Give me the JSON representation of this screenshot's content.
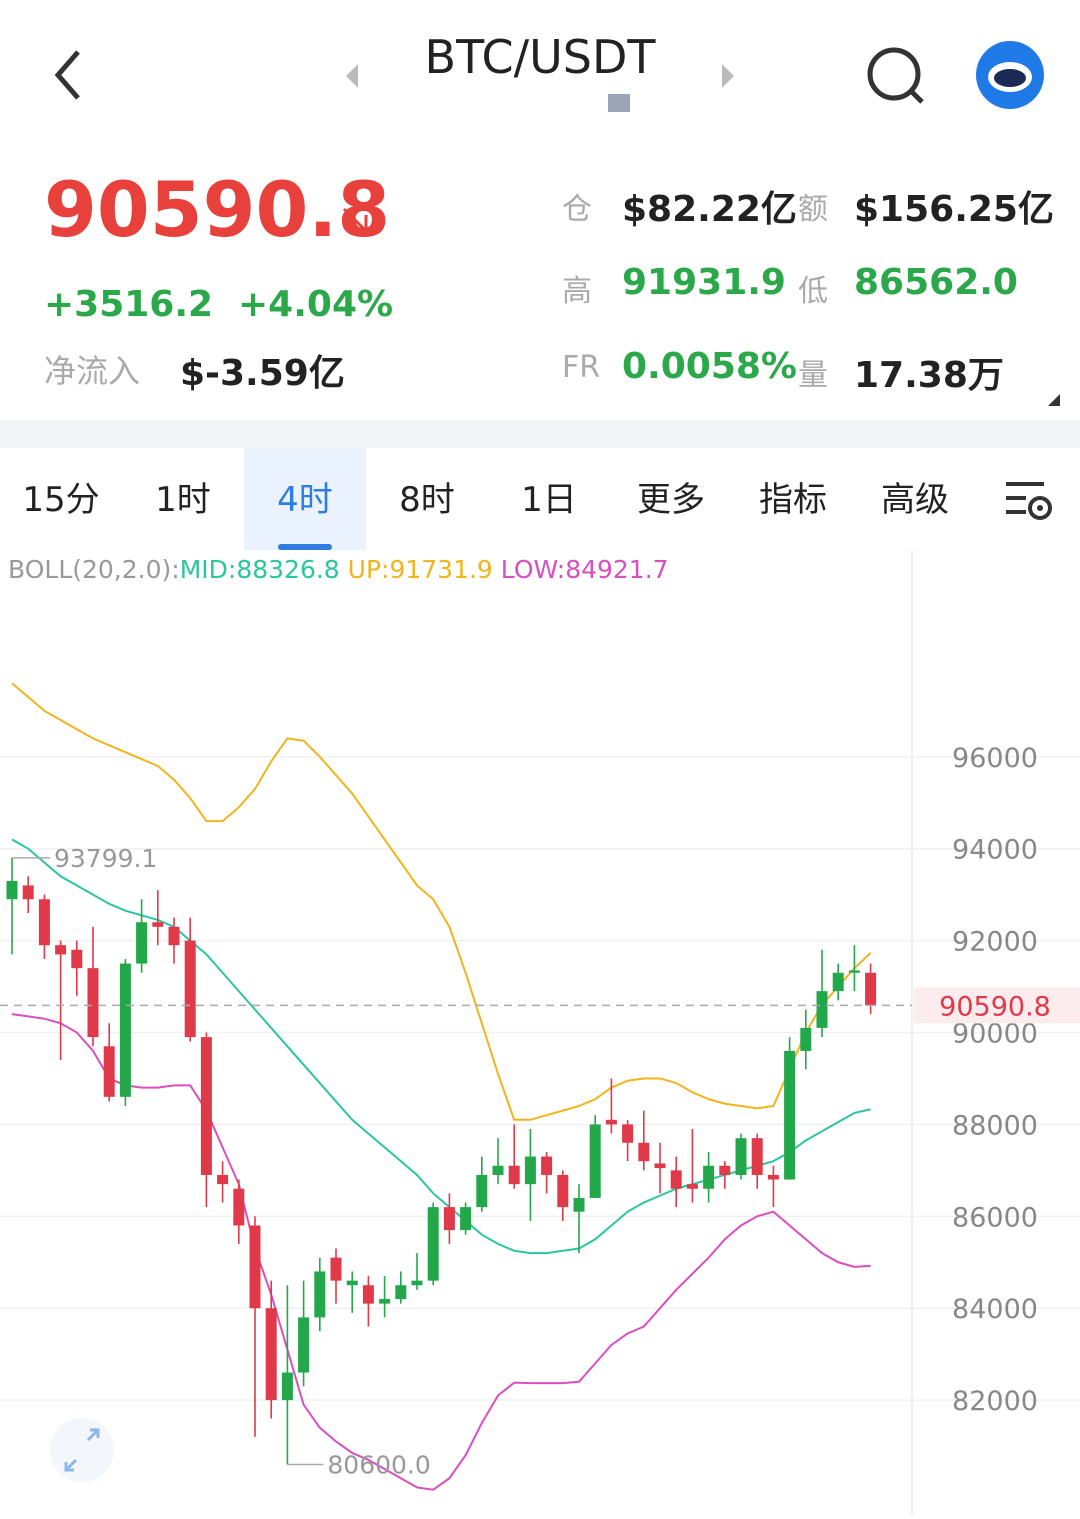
{
  "header": {
    "symbol": "BTC/USDT"
  },
  "ticker": {
    "price": "90590.8",
    "change": "+3516.2",
    "change_pct": "+4.04%",
    "net_inflow_label": "净流入",
    "net_inflow": "$-3.59亿",
    "stats": [
      {
        "label": "仓",
        "value": "$82.22亿"
      },
      {
        "label": "额",
        "value": "$156.25亿"
      },
      {
        "label": "高",
        "value": "91931.9"
      },
      {
        "label": "低",
        "value": "86562.0"
      },
      {
        "label": "FR",
        "value": "0.0058%"
      },
      {
        "label": "量",
        "value": "17.38万"
      }
    ]
  },
  "tabs": [
    "15分",
    "1时",
    "4时",
    "8时",
    "1日",
    "更多",
    "指标",
    "高级"
  ],
  "active_tab": 2,
  "chart_data": {
    "type": "candlestick",
    "up_color": "#22a84a",
    "down_color": "#e0394a",
    "ylim": [
      79500,
      100500
    ],
    "yticks": [
      82000,
      84000,
      86000,
      88000,
      90000,
      92000,
      94000,
      96000
    ],
    "grid": true,
    "last_price": 90590.8,
    "max_label": "93799.1",
    "min_label": "80600.0",
    "candles": {
      "open": [
        92900,
        93200,
        92900,
        91900,
        91800,
        91400,
        89700,
        88600,
        91500,
        92400,
        92300,
        92000,
        89900,
        86900,
        86600,
        85800,
        84000,
        82000,
        82600,
        83800,
        85100,
        84500,
        84500,
        84100,
        84200,
        84500,
        84600,
        86200,
        85700,
        86200,
        86900,
        87100,
        86700,
        87300,
        86900,
        86100,
        86400,
        88100,
        88000,
        87600,
        87150,
        87000,
        86700,
        86600,
        87100,
        86900,
        87700,
        86900,
        86800,
        89600,
        90100,
        90900,
        91300,
        91300
      ],
      "high": [
        93799.1,
        93400,
        93000,
        92000,
        92000,
        92300,
        90200,
        91600,
        92900,
        93100,
        92500,
        92500,
        90000,
        87200,
        86800,
        86000,
        84600,
        84500,
        84600,
        85100,
        85300,
        84800,
        84700,
        84700,
        84800,
        85200,
        86300,
        86500,
        86300,
        87300,
        87700,
        88000,
        87900,
        87400,
        87000,
        86700,
        88200,
        89000,
        88100,
        88300,
        87600,
        87300,
        87900,
        87400,
        87200,
        87800,
        87800,
        87100,
        89900,
        90500,
        91800,
        91500,
        91900,
        91500
      ],
      "low": [
        91700,
        92600,
        91600,
        89400,
        90800,
        89700,
        88500,
        88400,
        91300,
        91900,
        91500,
        89800,
        86200,
        86300,
        85400,
        81200,
        81600,
        80600,
        82300,
        83500,
        84100,
        83900,
        83600,
        83800,
        84100,
        84400,
        84500,
        85400,
        85600,
        86100,
        86700,
        86600,
        85900,
        86500,
        85900,
        85200,
        86400,
        87800,
        87200,
        87000,
        86500,
        86200,
        86300,
        86300,
        86600,
        86800,
        86600,
        86200,
        86800,
        89200,
        89900,
        90700,
        90900,
        90400
      ],
      "close": [
        93300,
        92900,
        91900,
        91700,
        91400,
        89900,
        88600,
        91500,
        92400,
        92300,
        91900,
        89900,
        86900,
        86700,
        85800,
        84000,
        82000,
        82600,
        83800,
        84800,
        84600,
        84600,
        84100,
        84200,
        84500,
        84600,
        86200,
        85700,
        86200,
        86900,
        87100,
        86700,
        87300,
        86900,
        86200,
        86400,
        88000,
        88000,
        87600,
        87200,
        87050,
        86600,
        86600,
        87100,
        86900,
        87700,
        86900,
        86800,
        89600,
        90100,
        90900,
        91300,
        91350,
        90590.8
      ]
    },
    "indicator": "BOLL(20,2.0):",
    "lines": [
      {
        "label": "MID:88326.8",
        "color": "#2bc6a0",
        "values": [
          94200,
          94000,
          93700,
          93400,
          93200,
          93000,
          92800,
          92650,
          92550,
          92450,
          92300,
          92000,
          91700,
          91300,
          90900,
          90500,
          90100,
          89700,
          89300,
          88900,
          88500,
          88100,
          87800,
          87500,
          87200,
          86900,
          86500,
          86200,
          85900,
          85600,
          85400,
          85250,
          85200,
          85200,
          85250,
          85300,
          85500,
          85800,
          86100,
          86300,
          86450,
          86600,
          86700,
          86800,
          86900,
          87000,
          87100,
          87200,
          87400,
          87650,
          87850,
          88050,
          88250,
          88326.8
        ]
      },
      {
        "label": "UP:91731.9",
        "color": "#f0b41c",
        "values": [
          97600,
          97300,
          97000,
          96800,
          96600,
          96400,
          96250,
          96100,
          95950,
          95800,
          95500,
          95100,
          94600,
          94600,
          94900,
          95300,
          95900,
          96400,
          96350,
          96000,
          95600,
          95200,
          94700,
          94200,
          93700,
          93200,
          92900,
          92300,
          91300,
          90200,
          89100,
          88100,
          88100,
          88200,
          88300,
          88400,
          88550,
          88800,
          88950,
          89000,
          89000,
          88900,
          88700,
          88550,
          88450,
          88400,
          88350,
          88400,
          89200,
          90000,
          90600,
          91000,
          91400,
          91731.9
        ]
      },
      {
        "label": "LOW:84921.7",
        "color": "#d94fc0",
        "values": [
          90400,
          90350,
          90300,
          90200,
          90000,
          89600,
          89000,
          88850,
          88800,
          88800,
          88850,
          88850,
          88300,
          87500,
          86700,
          85300,
          84300,
          83100,
          81900,
          81400,
          81100,
          80850,
          80700,
          80500,
          80300,
          80100,
          80050,
          80300,
          80800,
          81500,
          82100,
          82380,
          82370,
          82370,
          82370,
          82400,
          82800,
          83200,
          83450,
          83600,
          84000,
          84400,
          84750,
          85100,
          85500,
          85800,
          86000,
          86100,
          85800,
          85500,
          85200,
          85000,
          84900,
          84921.7
        ]
      }
    ]
  }
}
